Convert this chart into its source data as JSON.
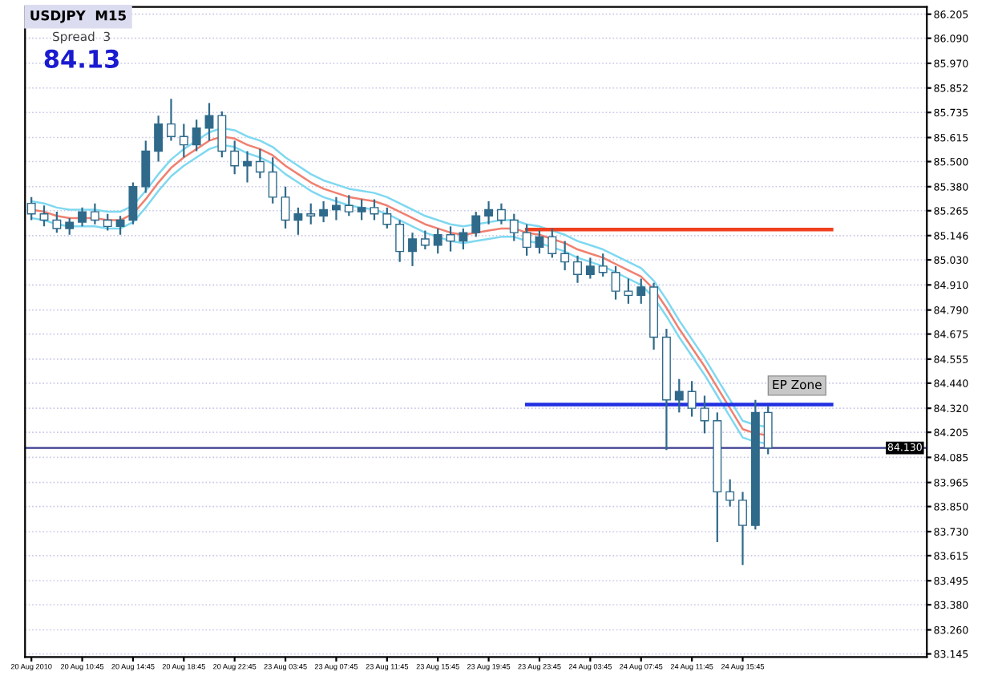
{
  "chart_data": {
    "type": "candlestick",
    "title": "USDJPY  M15",
    "subtitle": "Spread  3",
    "annotations": [
      "84.13",
      "EP Zone"
    ],
    "categories": [
      "20 Aug 2010",
      null,
      null,
      null,
      "20 Aug 10:45",
      null,
      null,
      null,
      "20 Aug 14:45",
      null,
      null,
      null,
      "20 Aug 18:45",
      null,
      null,
      null,
      "20 Aug 22:45",
      null,
      null,
      null,
      "23 Aug 03:45",
      null,
      null,
      null,
      "23 Aug 07:45",
      null,
      null,
      null,
      "23 Aug 11:45",
      null,
      null,
      null,
      "23 Aug 15:45",
      null,
      null,
      null,
      "23 Aug 19:45",
      null,
      null,
      null,
      "23 Aug 23:45",
      null,
      null,
      null,
      "24 Aug 03:45",
      null,
      null,
      null,
      "24 Aug 07:45",
      null,
      null,
      null,
      "24 Aug 11:45",
      null,
      null,
      null,
      "24 Aug 15:45",
      null,
      null,
      null,
      null,
      null,
      null,
      null
    ],
    "color": "#2f6a8a",
    "ohlc": [
      [
        85.3,
        85.33,
        85.22,
        85.25
      ],
      [
        85.25,
        85.29,
        85.19,
        85.22
      ],
      [
        85.22,
        85.26,
        85.16,
        85.18
      ],
      [
        85.18,
        85.23,
        85.15,
        85.21
      ],
      [
        85.21,
        85.28,
        85.19,
        85.26
      ],
      [
        85.26,
        85.3,
        85.2,
        85.22
      ],
      [
        85.22,
        85.25,
        85.17,
        85.19
      ],
      [
        85.19,
        85.24,
        85.15,
        85.22
      ],
      [
        85.22,
        85.4,
        85.2,
        85.38
      ],
      [
        85.38,
        85.6,
        85.35,
        85.55
      ],
      [
        85.55,
        85.72,
        85.5,
        85.68
      ],
      [
        85.68,
        85.8,
        85.6,
        85.62
      ],
      [
        85.62,
        85.68,
        85.52,
        85.58
      ],
      [
        85.58,
        85.7,
        85.55,
        85.66
      ],
      [
        85.66,
        85.78,
        85.6,
        85.72
      ],
      [
        85.72,
        85.74,
        85.52,
        85.55
      ],
      [
        85.55,
        85.6,
        85.44,
        85.48
      ],
      [
        85.48,
        85.55,
        85.4,
        85.5
      ],
      [
        85.5,
        85.56,
        85.42,
        85.45
      ],
      [
        85.45,
        85.52,
        85.3,
        85.33
      ],
      [
        85.33,
        85.38,
        85.18,
        85.22
      ],
      [
        85.22,
        85.28,
        85.15,
        85.25
      ],
      [
        85.25,
        85.3,
        85.2,
        85.24
      ],
      [
        85.24,
        85.31,
        85.21,
        85.27
      ],
      [
        85.27,
        85.33,
        85.22,
        85.29
      ],
      [
        85.29,
        85.34,
        85.24,
        85.26
      ],
      [
        85.26,
        85.32,
        85.22,
        85.28
      ],
      [
        85.28,
        85.32,
        85.22,
        85.25
      ],
      [
        85.25,
        85.28,
        85.18,
        85.2
      ],
      [
        85.2,
        85.22,
        85.02,
        85.07
      ],
      [
        85.07,
        85.16,
        85.0,
        85.13
      ],
      [
        85.13,
        85.17,
        85.08,
        85.1
      ],
      [
        85.1,
        85.18,
        85.06,
        85.15
      ],
      [
        85.15,
        85.19,
        85.07,
        85.12
      ],
      [
        85.12,
        85.18,
        85.08,
        85.16
      ],
      [
        85.16,
        85.26,
        85.14,
        85.24
      ],
      [
        85.24,
        85.31,
        85.2,
        85.27
      ],
      [
        85.27,
        85.3,
        85.2,
        85.22
      ],
      [
        85.22,
        85.25,
        85.12,
        85.16
      ],
      [
        85.16,
        85.2,
        85.05,
        85.09
      ],
      [
        85.09,
        85.17,
        85.06,
        85.14
      ],
      [
        85.14,
        85.18,
        85.04,
        85.06
      ],
      [
        85.06,
        85.12,
        84.98,
        85.02
      ],
      [
        85.02,
        85.05,
        84.92,
        84.96
      ],
      [
        84.96,
        85.04,
        84.94,
        85.0
      ],
      [
        85.0,
        85.06,
        84.95,
        84.97
      ],
      [
        84.97,
        85.0,
        84.84,
        84.88
      ],
      [
        84.88,
        84.94,
        84.82,
        84.86
      ],
      [
        84.86,
        84.94,
        84.82,
        84.9
      ],
      [
        84.9,
        84.92,
        84.6,
        84.66
      ],
      [
        84.66,
        84.7,
        84.12,
        84.36
      ],
      [
        84.36,
        84.46,
        84.3,
        84.4
      ],
      [
        84.4,
        84.45,
        84.28,
        84.32
      ],
      [
        84.32,
        84.38,
        84.2,
        84.26
      ],
      [
        84.26,
        84.3,
        83.68,
        83.92
      ],
      [
        83.92,
        83.98,
        83.85,
        83.88
      ],
      [
        83.88,
        83.92,
        83.57,
        83.76
      ],
      [
        83.76,
        84.36,
        83.74,
        84.3
      ],
      [
        84.3,
        84.33,
        84.1,
        84.13
      ],
      null,
      null,
      null,
      null,
      null
    ],
    "series": [
      {
        "type": "line",
        "color": "#7fd8f0",
        "values": [
          85.31,
          85.3,
          85.28,
          85.27,
          85.27,
          85.27,
          85.26,
          85.26,
          85.29,
          85.36,
          85.44,
          85.51,
          85.56,
          85.6,
          85.64,
          85.66,
          85.65,
          85.62,
          85.6,
          85.57,
          85.52,
          85.48,
          85.44,
          85.41,
          85.39,
          85.37,
          85.36,
          85.35,
          85.33,
          85.3,
          85.27,
          85.24,
          85.22,
          85.2,
          85.19,
          85.2,
          85.21,
          85.22,
          85.22,
          85.2,
          85.19,
          85.17,
          85.15,
          85.12,
          85.1,
          85.08,
          85.05,
          85.02,
          84.99,
          84.93,
          84.84,
          84.74,
          84.65,
          84.56,
          84.46,
          84.36,
          84.26,
          84.24,
          84.23,
          null,
          null,
          null,
          null,
          null
        ]
      },
      {
        "type": "line",
        "color": "#f08070",
        "values": [
          85.27,
          85.26,
          85.24,
          85.23,
          85.23,
          85.23,
          85.22,
          85.22,
          85.25,
          85.32,
          85.4,
          85.47,
          85.52,
          85.56,
          85.6,
          85.62,
          85.61,
          85.58,
          85.56,
          85.53,
          85.48,
          85.44,
          85.4,
          85.37,
          85.35,
          85.33,
          85.32,
          85.31,
          85.29,
          85.26,
          85.23,
          85.2,
          85.18,
          85.16,
          85.15,
          85.16,
          85.17,
          85.18,
          85.18,
          85.16,
          85.15,
          85.13,
          85.11,
          85.08,
          85.06,
          85.04,
          85.01,
          84.98,
          84.95,
          84.89,
          84.8,
          84.7,
          84.61,
          84.52,
          84.42,
          84.32,
          84.22,
          84.2,
          84.19,
          null,
          null,
          null,
          null,
          null
        ]
      },
      {
        "type": "line",
        "color": "#7fd8f0",
        "values": [
          85.23,
          85.22,
          85.2,
          85.19,
          85.19,
          85.19,
          85.18,
          85.18,
          85.21,
          85.28,
          85.36,
          85.43,
          85.48,
          85.52,
          85.56,
          85.58,
          85.57,
          85.54,
          85.52,
          85.49,
          85.44,
          85.4,
          85.36,
          85.33,
          85.31,
          85.29,
          85.28,
          85.27,
          85.25,
          85.22,
          85.19,
          85.16,
          85.14,
          85.12,
          85.11,
          85.12,
          85.13,
          85.14,
          85.14,
          85.12,
          85.11,
          85.09,
          85.07,
          85.04,
          85.02,
          85.0,
          84.97,
          84.94,
          84.91,
          84.85,
          84.76,
          84.66,
          84.57,
          84.48,
          84.38,
          84.28,
          84.18,
          84.16,
          84.15,
          null,
          null,
          null,
          null,
          null
        ]
      },
      {
        "type": "line",
        "color": "#f04020",
        "values": [
          null,
          null,
          null,
          null,
          null,
          null,
          null,
          null,
          null,
          null,
          null,
          null,
          null,
          null,
          null,
          null,
          null,
          null,
          null,
          null,
          null,
          null,
          null,
          null,
          null,
          null,
          null,
          null,
          null,
          null,
          null,
          null,
          null,
          null,
          null,
          null,
          null,
          null,
          null,
          85.175,
          null,
          null,
          null,
          null,
          null,
          null,
          null,
          null,
          null,
          null,
          null,
          null,
          null,
          null,
          null,
          null,
          null,
          null,
          null,
          null,
          null,
          null,
          null,
          85.175
        ]
      },
      {
        "type": "line",
        "color": "#2030e0",
        "values": [
          null,
          null,
          null,
          null,
          null,
          null,
          null,
          null,
          null,
          null,
          null,
          null,
          null,
          null,
          null,
          null,
          null,
          null,
          null,
          null,
          null,
          null,
          null,
          null,
          null,
          null,
          null,
          null,
          null,
          null,
          null,
          null,
          null,
          null,
          null,
          null,
          null,
          null,
          null,
          84.338,
          null,
          null,
          null,
          null,
          null,
          null,
          null,
          null,
          null,
          null,
          null,
          null,
          null,
          null,
          null,
          null,
          null,
          null,
          null,
          null,
          null,
          null,
          null,
          84.338
        ]
      }
    ],
    "ref_lines": [
      {
        "axis": "y",
        "value": 84.13,
        "label": "84.130",
        "color": "#3a3a90"
      }
    ],
    "ylim": [
      83.13,
      86.24
    ],
    "yticks": [
      86.205,
      {
        "value": 86.09,
        "label": "86.090"
      },
      {
        "value": 85.97,
        "label": "85.970"
      },
      85.852,
      85.735,
      85.615,
      {
        "value": 85.5,
        "label": "85.500"
      },
      {
        "value": 85.38,
        "label": "85.380"
      },
      85.265,
      85.146,
      {
        "value": 85.03,
        "label": "85.030"
      },
      {
        "value": 84.91,
        "label": "84.910"
      },
      {
        "value": 84.79,
        "label": "84.790"
      },
      84.675,
      84.555,
      {
        "value": 84.44,
        "label": "84.440"
      },
      {
        "value": 84.32,
        "label": "84.320"
      },
      84.205,
      84.085,
      83.965,
      {
        "value": 83.85,
        "label": "83.850"
      },
      {
        "value": 83.73,
        "label": "83.730"
      },
      83.615,
      83.495,
      {
        "value": 83.38,
        "label": "83.380"
      },
      {
        "value": 83.26,
        "label": "83.260"
      },
      83.145
    ],
    "grid": "y"
  }
}
